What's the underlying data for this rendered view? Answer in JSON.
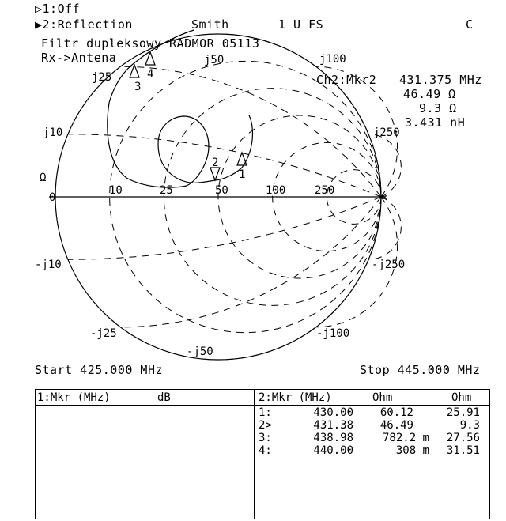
{
  "header": {
    "trace1": "▷1:Off",
    "trace2": "▶2:Reflection",
    "format": "Smith",
    "scale": "1 U FS",
    "cal_flag": "C",
    "title_line1": "Filtr dupleksowy RADMOR 05113",
    "title_line2": "Rx->Antena"
  },
  "marker_readout": {
    "label": "Ch2:Mkr2",
    "frequency": "431.375 MHz",
    "resistance": "46.49 Ω",
    "reactance": "9.3 Ω",
    "inductance": "3.431 nH"
  },
  "smith": {
    "resistance_labels": [
      "0",
      "10",
      "25",
      "50",
      "100",
      "250",
      "∞"
    ],
    "reactance_labels_pos": [
      "j10",
      "j25",
      "j50",
      "j100",
      "j250"
    ],
    "reactance_labels_neg": [
      "-j10",
      "-j25",
      "-j50",
      "-j100",
      "-j250"
    ],
    "ohm_symbol": "Ω",
    "markers": [
      {
        "id": "1",
        "dir": "up"
      },
      {
        "id": "2",
        "dir": "down"
      },
      {
        "id": "3",
        "dir": "up"
      },
      {
        "id": "4",
        "dir": "up"
      }
    ]
  },
  "sweep": {
    "start": "Start 425.000 MHz",
    "stop": "Stop 445.000 MHz"
  },
  "table": {
    "left_header": [
      "1:Mkr (MHz)",
      "dB"
    ],
    "right_header": [
      "2:Mkr (MHz)",
      "Ohm",
      "Ohm"
    ],
    "rows": [
      [
        "1:",
        "430.00",
        "60.12",
        "25.91"
      ],
      [
        "2>",
        "431.38",
        "46.49",
        "9.3"
      ],
      [
        "3:",
        "438.98",
        "782.2 m",
        "27.56"
      ],
      [
        "4:",
        "440.00",
        "308 m",
        "31.51"
      ]
    ]
  }
}
